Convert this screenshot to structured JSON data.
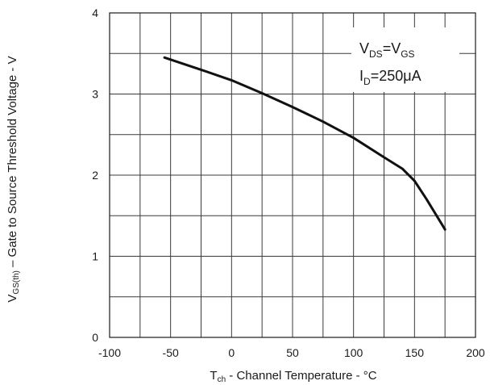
{
  "chart_data": {
    "type": "line",
    "xlabel": {
      "prefix": "T",
      "sub": "ch",
      "suffix": " - Channel Temperature - °C"
    },
    "ylabel": {
      "prefix": "V",
      "sub": "GS(th)",
      "suffix": " – Gate to Source Threshold  Voltage - V"
    },
    "xlim": [
      -100,
      200
    ],
    "ylim": [
      0,
      4
    ],
    "x_ticks": [
      "-100",
      "-50",
      "0",
      "50",
      "100",
      "150",
      "200"
    ],
    "y_ticks": [
      "0",
      "1",
      "2",
      "3",
      "4"
    ],
    "grid": true,
    "annotation": {
      "line1": {
        "a": "V",
        "a_sub": "DS",
        "mid": "=V",
        "b_sub": "GS"
      },
      "line2": {
        "a": "I",
        "a_sub": "D",
        "rest": "=250μA"
      }
    },
    "series": [
      {
        "color": "#111111",
        "x": [
          -55,
          -25,
          0,
          25,
          50,
          75,
          100,
          125,
          140,
          150,
          160,
          175
        ],
        "y": [
          3.45,
          3.3,
          3.17,
          3.01,
          2.84,
          2.66,
          2.46,
          2.22,
          2.08,
          1.93,
          1.7,
          1.33
        ]
      }
    ]
  }
}
